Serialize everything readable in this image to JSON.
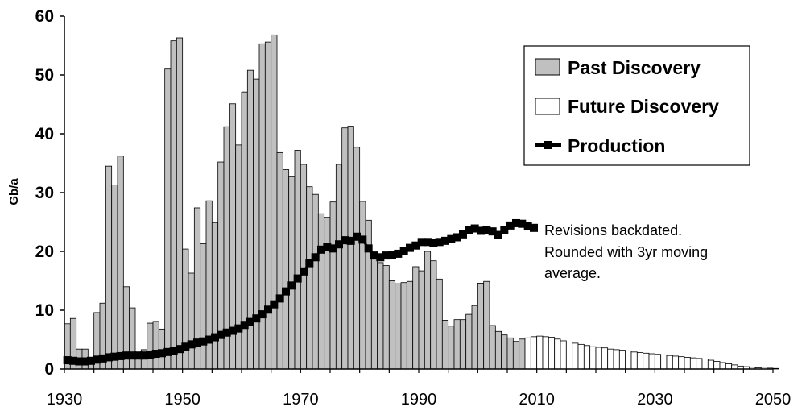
{
  "chart_data": {
    "type": "bar",
    "title": "",
    "xlabel": "",
    "ylabel": "Gb/a",
    "xlim": [
      1930,
      2050
    ],
    "ylim": [
      0,
      60
    ],
    "x_ticks": [
      "1930",
      "1950",
      "1970",
      "1990",
      "2010",
      "2030",
      "2050"
    ],
    "y_ticks": [
      "0",
      "10",
      "20",
      "30",
      "40",
      "50",
      "60"
    ],
    "grid": false,
    "legend_position": "top-right",
    "colors": {
      "past_discovery": "#c0c0c0",
      "future_discovery": "#ffffff",
      "production": "#000000",
      "outline": "#000000"
    },
    "series": [
      {
        "name": "Past Discovery",
        "kind": "bar",
        "start_year": 1930,
        "values": [
          7.7,
          8.6,
          3.4,
          3.4,
          2.0,
          9.6,
          11.2,
          34.5,
          31.3,
          36.2,
          14.0,
          10.4,
          2.4,
          3.3,
          7.8,
          8.1,
          6.8,
          51.0,
          55.8,
          56.3,
          20.4,
          16.3,
          27.4,
          21.3,
          28.6,
          24.9,
          35.2,
          41.2,
          45.1,
          38.1,
          47.1,
          50.8,
          49.3,
          55.3,
          55.6,
          56.8,
          36.8,
          33.9,
          32.7,
          37.2,
          34.8,
          31.0,
          29.7,
          26.4,
          25.8,
          28.4,
          34.8,
          41.0,
          41.3,
          37.7,
          28.5,
          25.3,
          19.0,
          18.1,
          17.6,
          15.0,
          14.5,
          14.7,
          14.9,
          17.4,
          16.7,
          20.0,
          18.4,
          15.3,
          8.3,
          7.3,
          8.4,
          8.4,
          9.3,
          10.8,
          14.6,
          14.9,
          7.4,
          6.4,
          5.8,
          5.3,
          4.7,
          5.1
        ]
      },
      {
        "name": "Future Discovery",
        "kind": "bar",
        "start_year": 2008,
        "values": [
          5.3,
          5.5,
          5.6,
          5.5,
          5.4,
          5.1,
          4.8,
          4.6,
          4.4,
          4.2,
          4.0,
          3.8,
          3.7,
          3.6,
          3.4,
          3.3,
          3.2,
          3.1,
          2.9,
          2.8,
          2.7,
          2.6,
          2.5,
          2.4,
          2.3,
          2.2,
          2.1,
          2.0,
          1.9,
          1.8,
          1.7,
          1.5,
          1.3,
          1.1,
          0.9,
          0.7,
          0.5,
          0.4,
          0.3,
          0.2,
          0.3,
          0.15,
          0.1
        ]
      },
      {
        "name": "Production",
        "kind": "line",
        "start_year": 1930,
        "values": [
          1.5,
          1.4,
          1.3,
          1.3,
          1.4,
          1.6,
          1.8,
          2.0,
          2.1,
          2.2,
          2.3,
          2.3,
          2.3,
          2.3,
          2.4,
          2.6,
          2.7,
          2.9,
          3.1,
          3.4,
          3.8,
          4.2,
          4.5,
          4.7,
          5.0,
          5.4,
          5.8,
          6.2,
          6.5,
          6.9,
          7.5,
          8.0,
          8.6,
          9.3,
          10.1,
          11.0,
          12.0,
          13.2,
          14.2,
          15.4,
          16.6,
          18.0,
          19.0,
          20.3,
          20.8,
          20.5,
          21.2,
          21.9,
          21.8,
          22.5,
          22.0,
          20.5,
          19.3,
          19.0,
          19.3,
          19.4,
          19.6,
          20.1,
          20.6,
          21.0,
          21.6,
          21.6,
          21.4,
          21.6,
          21.8,
          22.1,
          22.4,
          22.9,
          23.6,
          23.9,
          23.5,
          23.7,
          23.4,
          22.8,
          23.6,
          24.4,
          24.8,
          24.7,
          24.3,
          24.0
        ]
      }
    ],
    "legend": [
      "Past Discovery",
      "Future Discovery",
      "Production"
    ],
    "annotation": [
      "Revisions backdated.",
      "Rounded with 3yr moving",
      "average."
    ]
  }
}
